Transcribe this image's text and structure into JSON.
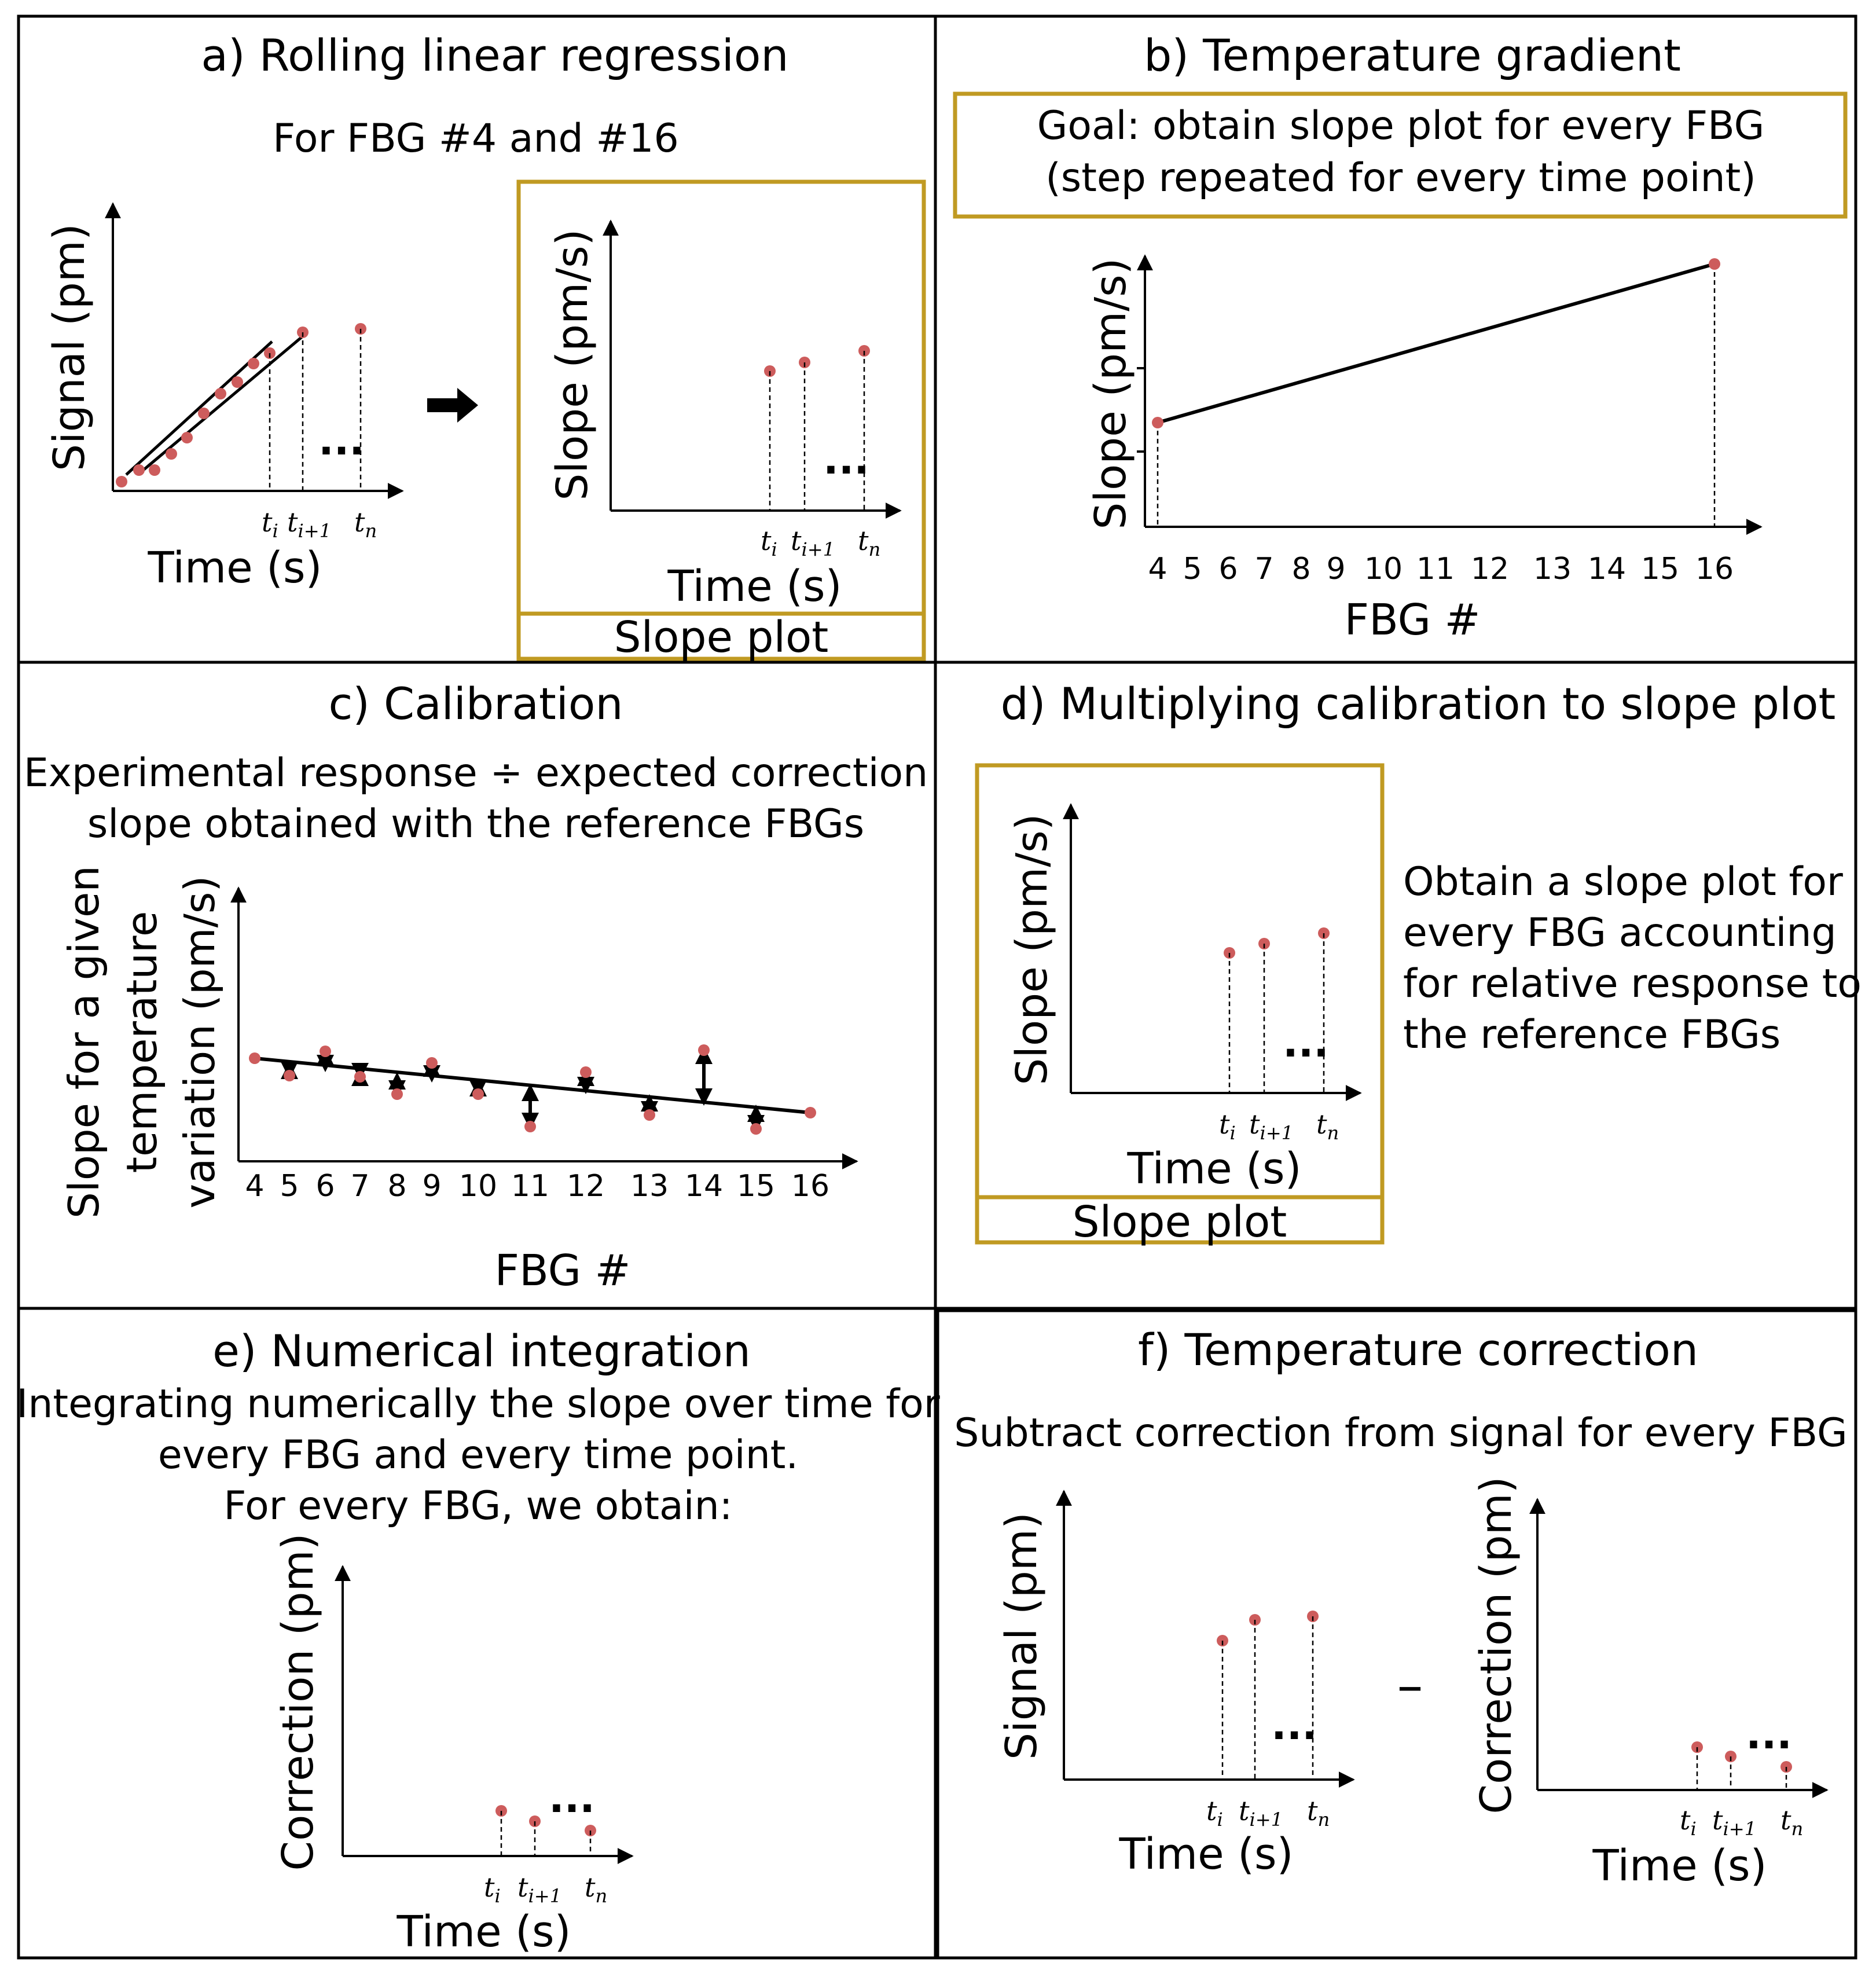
{
  "colors": {
    "gold": "#C09A22",
    "dot": "#CD5C5C",
    "line": "#000000"
  },
  "panel_a": {
    "title": "a) Rolling linear regression",
    "subtitle": "For FBG #4 and #16",
    "signal_ylabel": "Signal (pm)",
    "signal_xlabel": "Time (s)",
    "slope_ylabel": "Slope (pm/s)",
    "slope_xlabel": "Time (s)",
    "slope_box_label": "Slope plot",
    "arrow_icon": "right-arrow-icon",
    "ellipsis": "..."
  },
  "panel_b": {
    "title": "b) Temperature gradient",
    "goal_line1": "Goal: obtain slope plot for every  FBG",
    "goal_line2": "(step repeated for every time point)",
    "ylabel": "Slope (pm/s)",
    "xlabel": "FBG #",
    "ticks": [
      "4",
      "5",
      "6",
      "7",
      "8",
      "9",
      "10",
      "11",
      "12",
      "13",
      "14",
      "15",
      "16"
    ]
  },
  "panel_c": {
    "title": "c) Calibration",
    "desc_line1": "Experimental response ÷ expected correction",
    "desc_line2": "slope obtained with the reference FBGs",
    "ylabel_line1": "Slope for a given",
    "ylabel_line2": "temperature",
    "ylabel_line3": "variation (pm/s)",
    "xlabel": "FBG #",
    "ticks": [
      "4",
      "5",
      "6",
      "7",
      "8",
      "9",
      "10",
      "11",
      "12",
      "13",
      "14",
      "15",
      "16"
    ]
  },
  "panel_d": {
    "title": "d) Multiplying calibration to slope plot",
    "ylabel": "Slope (pm/s)",
    "xlabel": "Time (s)",
    "slope_box_label": "Slope plot",
    "desc_line1": "Obtain a slope plot for",
    "desc_line2": "every FBG accounting",
    "desc_line3": "for relative response to",
    "desc_line4": "the reference FBGs",
    "ellipsis": "..."
  },
  "panel_e": {
    "title": "e) Numerical integration",
    "desc_line1": "Integrating numerically the slope over time for",
    "desc_line2": "every FBG and every time point.",
    "desc_line3": "For every FBG, we obtain:",
    "ylabel": "Correction (pm)",
    "xlabel": "Time (s)",
    "ellipsis": "..."
  },
  "panel_f": {
    "title": "f) Temperature correction",
    "desc": "Subtract correction from signal for every FBG",
    "signal_ylabel": "Signal (pm)",
    "correction_ylabel": "Correction (pm)",
    "xlabel": "Time (s)",
    "minus": "–",
    "ellipsis": "..."
  },
  "time_ticks": {
    "ti_base": "t",
    "ti_sub": "i",
    "ti1_base": "t",
    "ti1_sub": "i+1",
    "tn_base": "t",
    "tn_sub": "n"
  }
}
